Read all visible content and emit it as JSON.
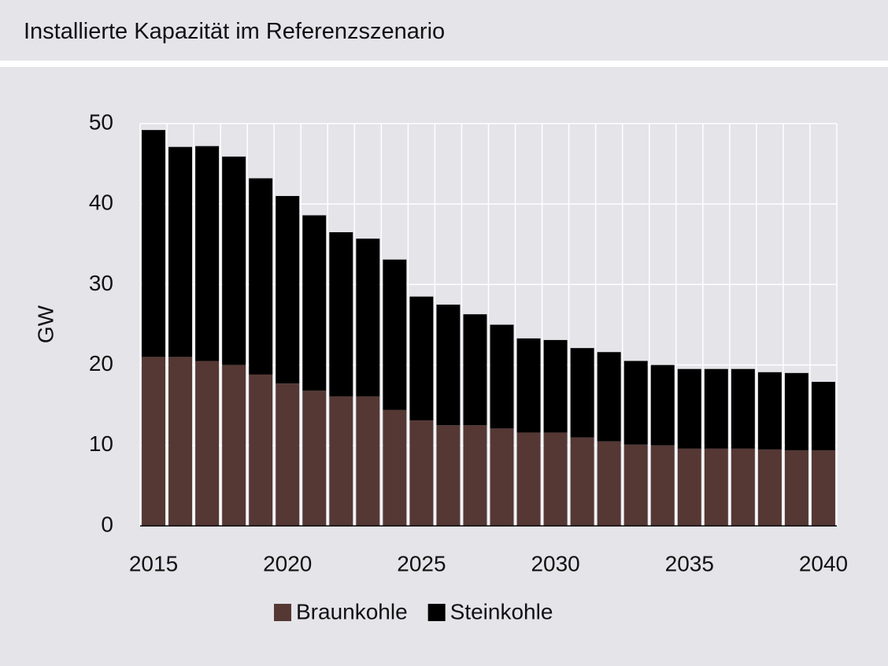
{
  "chart_data": {
    "type": "stacked-bar",
    "title": "Installierte Kapazität im Referenzszenario",
    "y_label": "GW",
    "categories": [
      "2015",
      null,
      null,
      null,
      null,
      "2020",
      null,
      null,
      null,
      null,
      "2025",
      null,
      null,
      null,
      null,
      "2030",
      null,
      null,
      null,
      null,
      "2035",
      null,
      null,
      null,
      null,
      "2040"
    ],
    "series": [
      {
        "name": "Braunkohle",
        "color": "#553834",
        "values": [
          21.0,
          21.0,
          20.5,
          20.0,
          18.8,
          17.7,
          16.8,
          16.1,
          16.1,
          14.4,
          13.1,
          12.5,
          12.5,
          12.1,
          11.6,
          11.6,
          11.0,
          10.5,
          10.1,
          10.0,
          9.6,
          9.6,
          9.6,
          9.5,
          9.4,
          9.4
        ]
      },
      {
        "name": "Steinkohle",
        "color": "#000000",
        "values": [
          28.2,
          26.1,
          26.7,
          25.9,
          24.4,
          23.3,
          21.8,
          20.4,
          19.6,
          18.7,
          15.4,
          15.0,
          13.8,
          12.9,
          11.7,
          11.5,
          11.1,
          11.1,
          10.4,
          10.0,
          9.9,
          9.9,
          9.9,
          9.6,
          9.6,
          8.5
        ]
      }
    ],
    "ylim": [
      0,
      50
    ],
    "yticks": [
      0,
      10,
      20,
      30,
      40,
      50
    ],
    "grid": true,
    "legend": "bottom"
  }
}
